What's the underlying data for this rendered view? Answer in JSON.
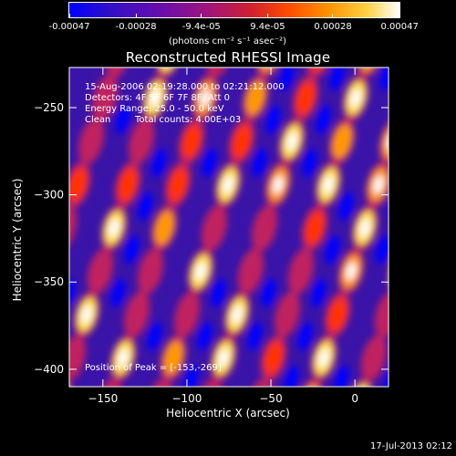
{
  "colorbar": {
    "tick_labels": [
      "-0.00047",
      "-0.00028",
      "-9.4e-05",
      "9.4e-05",
      "0.00028",
      "0.00047"
    ],
    "tick_values": [
      -0.00047,
      -0.00028,
      -9.4e-05,
      9.4e-05,
      0.00028,
      0.00047
    ],
    "range": [
      -0.00047,
      0.00047
    ],
    "unit_label": "(photons cm⁻² s⁻¹ asec⁻²)"
  },
  "chart_data": {
    "type": "heatmap",
    "title": "Reconstructed RHESSI Image",
    "xlabel": "Heliocentric X (arcsec)",
    "ylabel": "Heliocentric Y (arcsec)",
    "xlim": [
      -170,
      20
    ],
    "ylim": [
      -410,
      -227
    ],
    "x_ticks": [
      -150,
      -100,
      -50,
      0
    ],
    "y_ticks": [
      -400,
      -350,
      -300,
      -250
    ],
    "x_tick_labels": [
      "−150",
      "−100",
      "−50",
      "0"
    ],
    "y_tick_labels": [
      "−400",
      "−350",
      "−300",
      "−250"
    ],
    "peak_position": [
      -153,
      -269
    ],
    "colormap_stops": [
      "#0000ff",
      "#6a0dad",
      "#c02060",
      "#ff3000",
      "#ff9800",
      "#ffe050",
      "#ffffff"
    ]
  },
  "annotations": {
    "line1": "15-Aug-2006 02:19:28.000 to 02:21:12.000",
    "line2": "Detectors: 4F 5F 6F 7F 8F, Att 0",
    "line3": "Energy Range: 25.0 - 50.0 keV",
    "line4_method": "Clean",
    "line4_counts": "Total counts: 4.00E+03",
    "peak_label": "Position of Peak = [-153,-269]"
  },
  "footer": {
    "timestamp": "17-Jul-2013 02:12"
  }
}
